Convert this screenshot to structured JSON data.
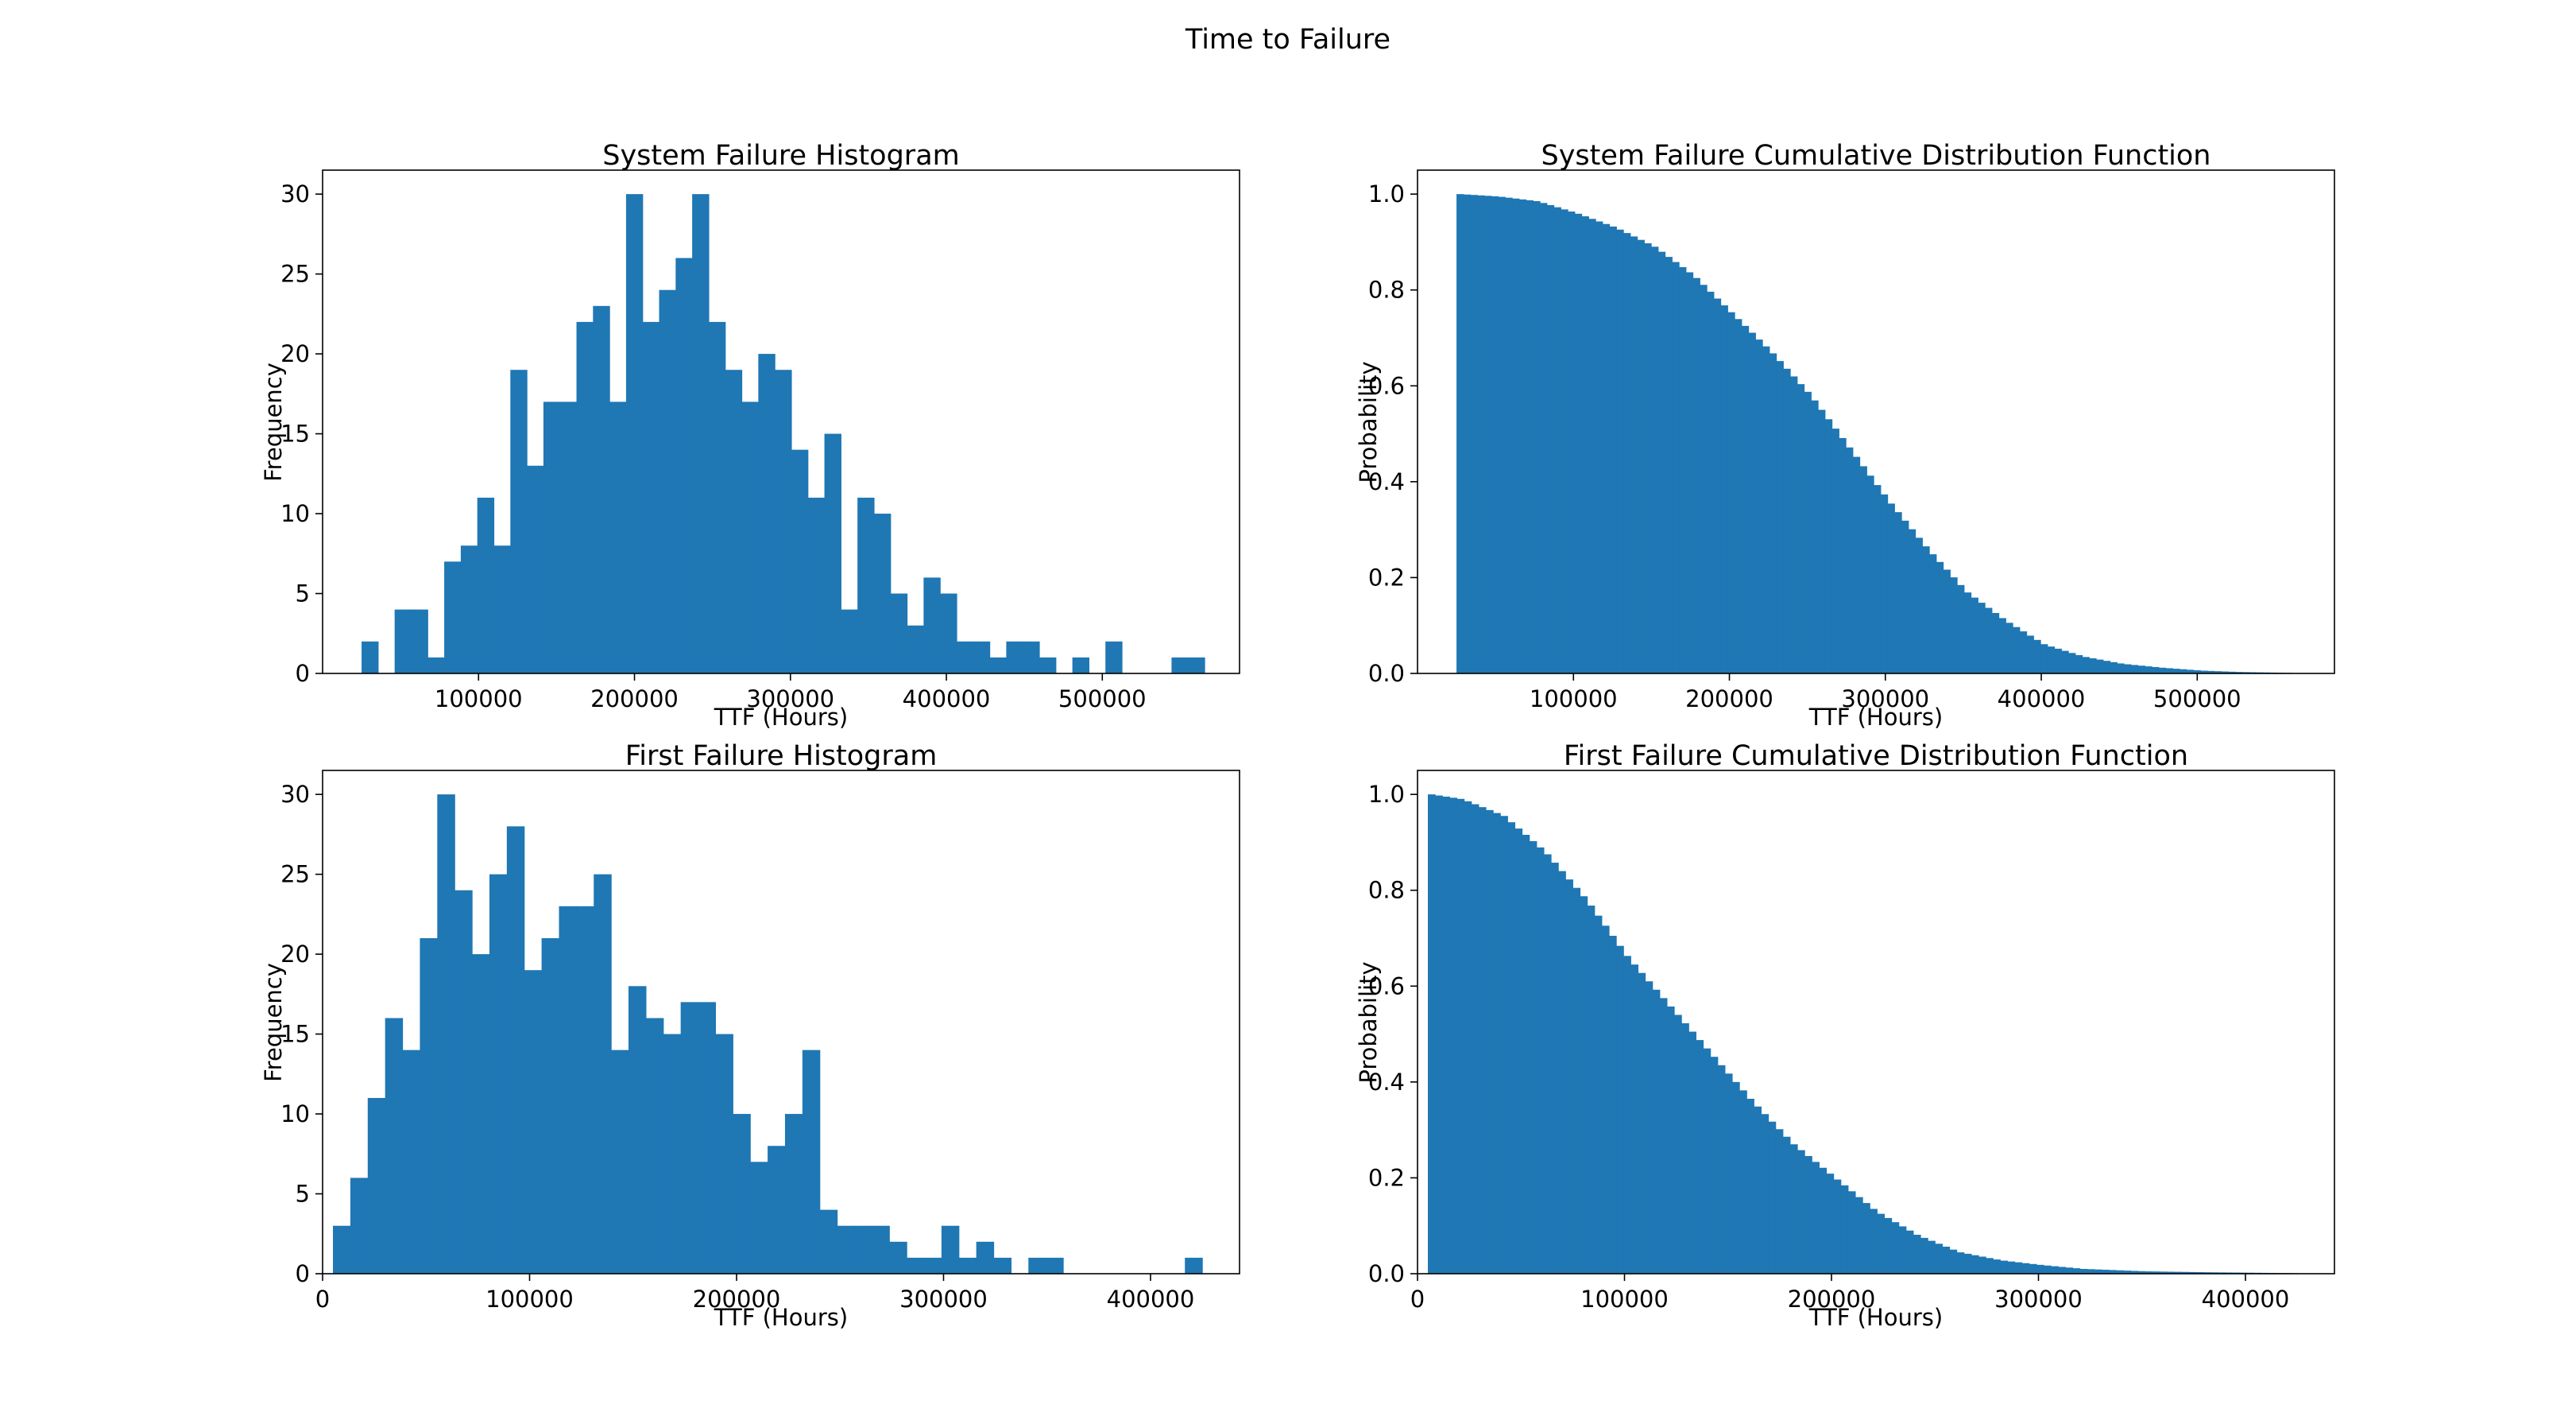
{
  "figure": {
    "title": "Time to Failure",
    "bar_color": "#1f77b4",
    "background": "#ffffff"
  },
  "chart_data": [
    {
      "type": "bar",
      "title": "System Failure Histogram",
      "xlabel": "TTF (Hours)",
      "ylabel": "Frequency",
      "xlim": [
        0,
        588000
      ],
      "ylim": [
        0,
        31.5
      ],
      "xticks": [
        100000,
        200000,
        300000,
        400000,
        500000
      ],
      "yticks": [
        0,
        5,
        10,
        15,
        20,
        25,
        30
      ],
      "bin_start": 25000,
      "bin_width": 10600,
      "values": [
        2,
        0,
        4,
        4,
        1,
        7,
        8,
        11,
        8,
        19,
        13,
        17,
        17,
        22,
        23,
        17,
        30,
        22,
        24,
        26,
        30,
        22,
        19,
        17,
        20,
        19,
        14,
        11,
        15,
        4,
        11,
        10,
        5,
        3,
        6,
        5,
        2,
        2,
        1,
        2,
        2,
        1,
        0,
        1,
        0,
        2,
        0,
        0,
        0,
        1,
        1
      ],
      "grid": false,
      "legend": "none"
    },
    {
      "type": "area",
      "title": "System Failure Cumulative Distribution Function",
      "xlabel": "TTF (Hours)",
      "ylabel": "Probability",
      "xlim": [
        0,
        588000
      ],
      "ylim": [
        0,
        1.05
      ],
      "xticks": [
        100000,
        200000,
        300000,
        400000,
        500000
      ],
      "yticks": [
        0.0,
        0.2,
        0.4,
        0.6,
        0.8,
        1.0
      ],
      "x": [
        25000,
        50000,
        75000,
        100000,
        125000,
        150000,
        175000,
        200000,
        225000,
        250000,
        275000,
        300000,
        325000,
        350000,
        375000,
        400000,
        425000,
        450000,
        475000,
        500000,
        525000,
        560000
      ],
      "values": [
        1.0,
        0.995,
        0.985,
        0.96,
        0.93,
        0.89,
        0.83,
        0.75,
        0.67,
        0.58,
        0.47,
        0.36,
        0.26,
        0.17,
        0.11,
        0.06,
        0.035,
        0.02,
        0.012,
        0.006,
        0.003,
        0.001
      ],
      "grid": false,
      "legend": "none"
    },
    {
      "type": "bar",
      "title": "First Failure Histogram",
      "xlabel": "TTF (Hours)",
      "ylabel": "Frequency",
      "xlim": [
        0,
        443000
      ],
      "ylim": [
        0,
        31.5
      ],
      "xticks": [
        0,
        100000,
        200000,
        300000,
        400000
      ],
      "yticks": [
        0,
        5,
        10,
        15,
        20,
        25,
        30
      ],
      "bin_start": 5000,
      "bin_width": 8400,
      "values": [
        3,
        6,
        11,
        16,
        14,
        21,
        30,
        24,
        20,
        25,
        28,
        19,
        21,
        23,
        23,
        25,
        14,
        18,
        16,
        15,
        17,
        17,
        15,
        10,
        7,
        8,
        10,
        14,
        4,
        3,
        3,
        3,
        2,
        1,
        1,
        3,
        1,
        2,
        1,
        0,
        1,
        1,
        0,
        0,
        0,
        0,
        0,
        0,
        0,
        1
      ],
      "grid": false,
      "legend": "none"
    },
    {
      "type": "area",
      "title": "First Failure Cumulative Distribution Function",
      "xlabel": "TTF (Hours)",
      "ylabel": "Probability",
      "xlim": [
        0,
        443000
      ],
      "ylim": [
        0,
        1.05
      ],
      "xticks": [
        0,
        100000,
        200000,
        300000,
        400000
      ],
      "yticks": [
        0.0,
        0.2,
        0.4,
        0.6,
        0.8,
        1.0
      ],
      "x": [
        5000,
        20000,
        40000,
        60000,
        80000,
        100000,
        120000,
        140000,
        160000,
        180000,
        200000,
        220000,
        240000,
        260000,
        280000,
        300000,
        320000,
        350000,
        380000,
        425000
      ],
      "values": [
        1.0,
        0.99,
        0.955,
        0.88,
        0.78,
        0.66,
        0.56,
        0.46,
        0.36,
        0.27,
        0.2,
        0.13,
        0.08,
        0.045,
        0.028,
        0.018,
        0.01,
        0.005,
        0.003,
        0.001
      ],
      "grid": false,
      "legend": "none"
    }
  ]
}
